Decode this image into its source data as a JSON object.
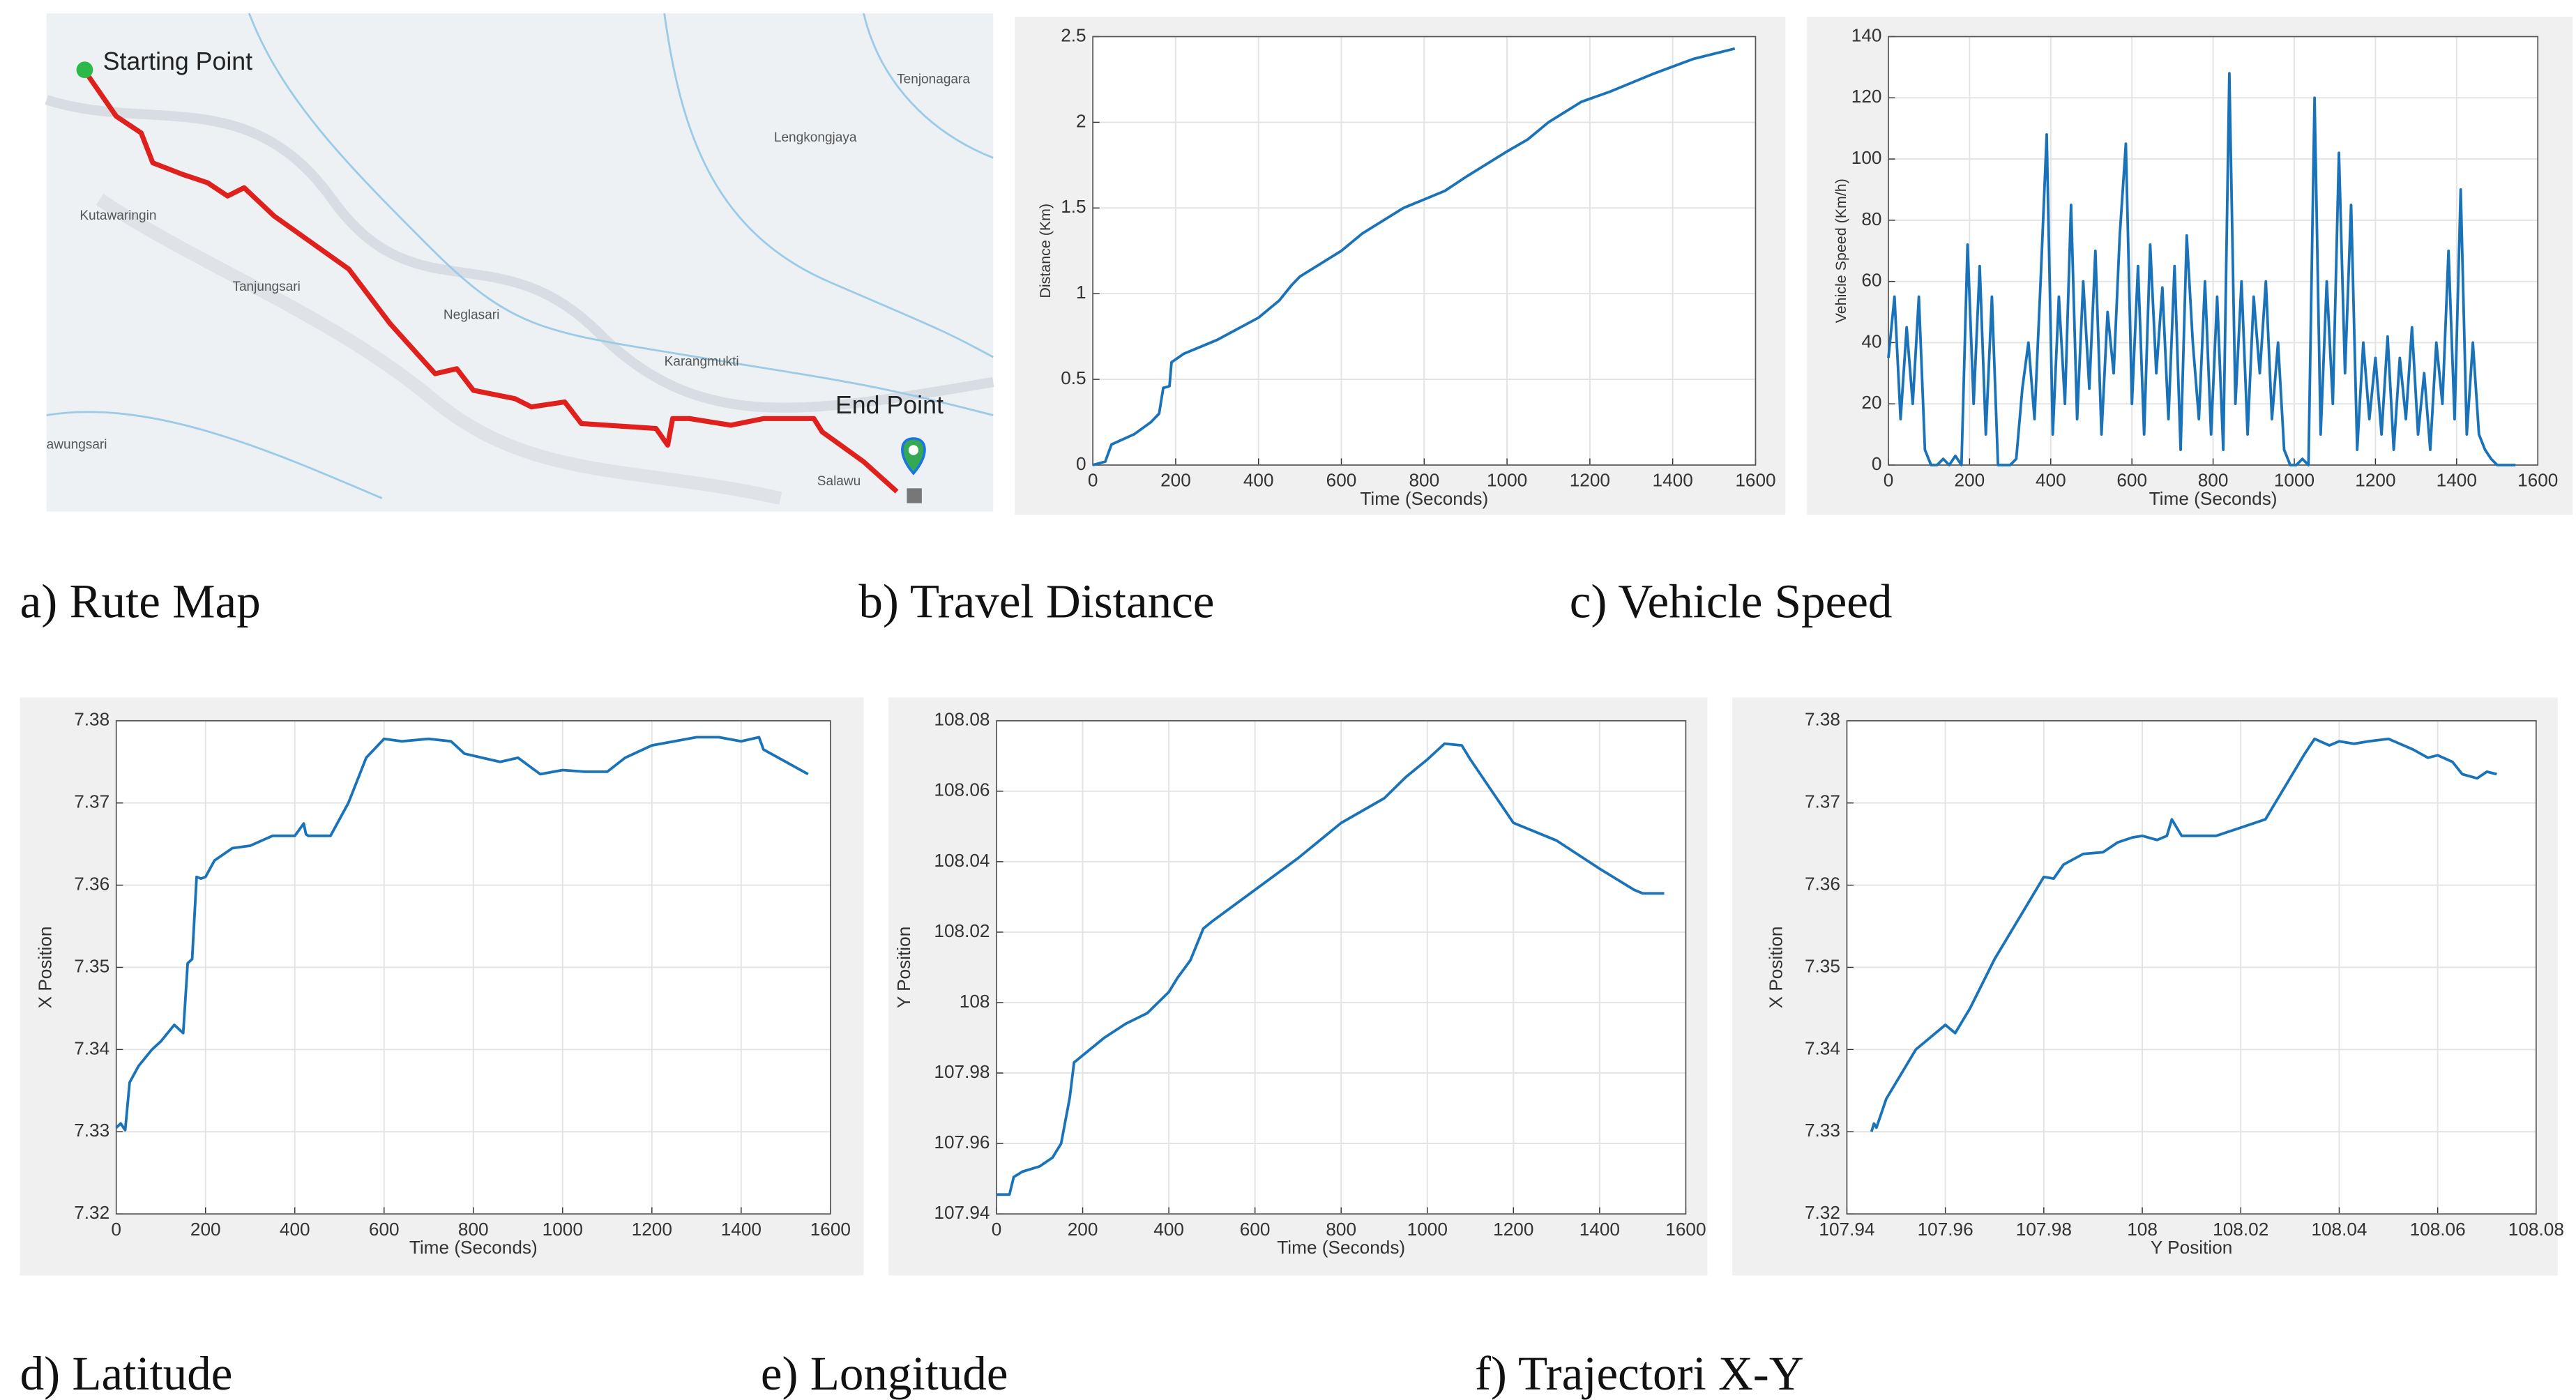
{
  "captions": [
    "a) Rute Map",
    "b) Travel Distance",
    "c) Vehicle Speed",
    "d) Latitude",
    "e) Longitude",
    "f) Trajectori X-Y"
  ],
  "map": {
    "labels": [
      "Starting Point",
      "End Point",
      "Tenjonagara",
      "Lengkongjaya",
      "Kutawaringin",
      "Tanjungsari",
      "Neglasari",
      "Karangmukti",
      "awungsari",
      "Salawu"
    ]
  },
  "chart_data": [
    {
      "type": "line",
      "xlabel": "Time (Seconds)",
      "ylabel": "Distance (Km)",
      "color": "#1a73b8",
      "grid": true,
      "xlim": [
        0,
        1600
      ],
      "ylim": [
        0,
        2.5
      ],
      "xticks": [
        0,
        200,
        400,
        600,
        800,
        1000,
        1200,
        1400,
        1600
      ],
      "yticks": [
        0,
        0.5,
        1,
        1.5,
        2,
        2.5
      ],
      "x": [
        0,
        30,
        45,
        100,
        140,
        160,
        170,
        185,
        190,
        220,
        300,
        400,
        450,
        480,
        500,
        600,
        650,
        750,
        850,
        900,
        1000,
        1050,
        1100,
        1180,
        1250,
        1350,
        1450,
        1550
      ],
      "values": [
        0,
        0.02,
        0.12,
        0.18,
        0.25,
        0.3,
        0.45,
        0.46,
        0.6,
        0.65,
        0.73,
        0.86,
        0.96,
        1.05,
        1.1,
        1.25,
        1.35,
        1.5,
        1.6,
        1.68,
        1.83,
        1.9,
        2.0,
        2.12,
        2.18,
        2.28,
        2.37,
        2.43
      ]
    },
    {
      "type": "line",
      "xlabel": "Time (Seconds)",
      "ylabel": "Vehicle Speed (Km/h)",
      "color": "#1a73b8",
      "grid": true,
      "xlim": [
        0,
        1600
      ],
      "ylim": [
        0,
        140
      ],
      "xticks": [
        0,
        200,
        400,
        600,
        800,
        1000,
        1200,
        1400,
        1600
      ],
      "yticks": [
        0,
        20,
        40,
        60,
        80,
        100,
        120,
        140
      ],
      "x": [
        0,
        15,
        30,
        45,
        60,
        75,
        90,
        105,
        120,
        135,
        150,
        165,
        180,
        195,
        210,
        225,
        240,
        255,
        270,
        285,
        300,
        315,
        330,
        345,
        360,
        375,
        390,
        405,
        420,
        435,
        450,
        465,
        480,
        495,
        510,
        525,
        540,
        555,
        570,
        585,
        600,
        615,
        630,
        645,
        660,
        675,
        690,
        705,
        720,
        735,
        750,
        765,
        780,
        795,
        810,
        825,
        840,
        855,
        870,
        885,
        900,
        915,
        930,
        945,
        960,
        975,
        990,
        1005,
        1020,
        1035,
        1050,
        1065,
        1080,
        1095,
        1110,
        1125,
        1140,
        1155,
        1170,
        1185,
        1200,
        1215,
        1230,
        1245,
        1260,
        1275,
        1290,
        1305,
        1320,
        1335,
        1350,
        1365,
        1380,
        1395,
        1410,
        1425,
        1440,
        1455,
        1470,
        1485,
        1500,
        1515,
        1530,
        1545
      ],
      "values": [
        35,
        55,
        15,
        45,
        20,
        55,
        5,
        0,
        0,
        2,
        0,
        3,
        0,
        72,
        20,
        65,
        10,
        55,
        0,
        0,
        0,
        2,
        25,
        40,
        15,
        60,
        108,
        10,
        55,
        20,
        85,
        15,
        60,
        25,
        70,
        10,
        50,
        30,
        75,
        105,
        20,
        65,
        10,
        72,
        30,
        58,
        15,
        65,
        5,
        75,
        40,
        15,
        60,
        10,
        55,
        5,
        128,
        20,
        60,
        10,
        55,
        30,
        60,
        15,
        40,
        5,
        0,
        0,
        2,
        0,
        120,
        10,
        60,
        20,
        102,
        30,
        85,
        5,
        40,
        15,
        35,
        10,
        42,
        5,
        35,
        15,
        45,
        10,
        30,
        5,
        40,
        20,
        70,
        15,
        90,
        10,
        40,
        10,
        5,
        2,
        0,
        0,
        0,
        0
      ]
    },
    {
      "type": "line",
      "xlabel": "Time (Seconds)",
      "ylabel": "X Position",
      "color": "#1a73b8",
      "grid": true,
      "xlim": [
        0,
        1600
      ],
      "ylim": [
        7.32,
        7.38
      ],
      "xticks": [
        0,
        200,
        400,
        600,
        800,
        1000,
        1200,
        1400,
        1600
      ],
      "yticks": [
        7.32,
        7.33,
        7.34,
        7.35,
        7.36,
        7.37,
        7.38
      ],
      "x": [
        0,
        10,
        20,
        30,
        40,
        50,
        80,
        100,
        130,
        150,
        160,
        170,
        180,
        190,
        200,
        220,
        260,
        300,
        350,
        400,
        420,
        425,
        430,
        450,
        480,
        520,
        560,
        600,
        640,
        700,
        750,
        780,
        820,
        860,
        900,
        950,
        1000,
        1050,
        1100,
        1140,
        1200,
        1250,
        1300,
        1350,
        1400,
        1440,
        1450,
        1500,
        1550
      ],
      "values": [
        7.3305,
        7.331,
        7.3302,
        7.336,
        7.337,
        7.338,
        7.34,
        7.341,
        7.343,
        7.342,
        7.3505,
        7.351,
        7.361,
        7.3608,
        7.361,
        7.363,
        7.3645,
        7.3648,
        7.366,
        7.366,
        7.3675,
        7.3662,
        7.366,
        7.366,
        7.366,
        7.37,
        7.3755,
        7.3778,
        7.3775,
        7.3778,
        7.3775,
        7.376,
        7.3755,
        7.375,
        7.3755,
        7.3735,
        7.374,
        7.3738,
        7.3738,
        7.3755,
        7.377,
        7.3775,
        7.378,
        7.378,
        7.3775,
        7.378,
        7.3765,
        7.375,
        7.3735
      ]
    },
    {
      "type": "line",
      "xlabel": "Time (Seconds)",
      "ylabel": "Y Position",
      "color": "#1a73b8",
      "grid": true,
      "xlim": [
        0,
        1600
      ],
      "ylim": [
        107.94,
        108.08
      ],
      "xticks": [
        0,
        200,
        400,
        600,
        800,
        1000,
        1200,
        1400,
        1600
      ],
      "yticks": [
        107.94,
        107.96,
        107.98,
        108,
        108.02,
        108.04,
        108.06,
        108.08
      ],
      "x": [
        0,
        30,
        40,
        60,
        100,
        130,
        150,
        170,
        180,
        200,
        250,
        300,
        350,
        400,
        420,
        450,
        480,
        500,
        600,
        700,
        800,
        900,
        950,
        1000,
        1040,
        1080,
        1100,
        1150,
        1200,
        1300,
        1400,
        1480,
        1500,
        1550
      ],
      "values": [
        107.9455,
        107.9455,
        107.9505,
        107.952,
        107.9535,
        107.956,
        107.96,
        107.973,
        107.983,
        107.985,
        107.99,
        107.994,
        107.997,
        108.003,
        108.007,
        108.012,
        108.021,
        108.023,
        108.032,
        108.041,
        108.051,
        108.058,
        108.064,
        108.069,
        108.0735,
        108.073,
        108.069,
        108.06,
        108.051,
        108.046,
        108.038,
        108.032,
        108.031,
        108.031
      ]
    },
    {
      "type": "line",
      "xlabel": "Y Position",
      "ylabel": "X Position",
      "color": "#1a73b8",
      "grid": true,
      "xlim": [
        107.94,
        108.08
      ],
      "ylim": [
        7.32,
        7.38
      ],
      "xticks": [
        107.94,
        107.96,
        107.98,
        108,
        108.02,
        108.04,
        108.06,
        108.08
      ],
      "yticks": [
        7.32,
        7.33,
        7.34,
        7.35,
        7.36,
        7.37,
        7.38
      ],
      "x": [
        107.945,
        107.9455,
        107.946,
        107.948,
        107.95,
        107.952,
        107.954,
        107.956,
        107.958,
        107.96,
        107.962,
        107.965,
        107.97,
        107.975,
        107.98,
        107.982,
        107.984,
        107.988,
        107.992,
        107.995,
        107.998,
        108.0,
        108.003,
        108.005,
        108.006,
        108.008,
        108.01,
        108.015,
        108.02,
        108.025,
        108.03,
        108.033,
        108.035,
        108.038,
        108.04,
        108.043,
        108.046,
        108.05,
        108.055,
        108.058,
        108.06,
        108.063,
        108.065,
        108.068,
        108.07,
        108.072
      ],
      "values": [
        7.33,
        7.331,
        7.3305,
        7.334,
        7.336,
        7.338,
        7.34,
        7.341,
        7.342,
        7.343,
        7.342,
        7.345,
        7.351,
        7.356,
        7.361,
        7.3608,
        7.3625,
        7.3638,
        7.364,
        7.3652,
        7.3658,
        7.366,
        7.3655,
        7.366,
        7.368,
        7.366,
        7.366,
        7.366,
        7.367,
        7.368,
        7.373,
        7.376,
        7.3778,
        7.377,
        7.3775,
        7.3772,
        7.3775,
        7.3778,
        7.3765,
        7.3755,
        7.3758,
        7.375,
        7.3735,
        7.373,
        7.3738,
        7.3735
      ]
    }
  ]
}
